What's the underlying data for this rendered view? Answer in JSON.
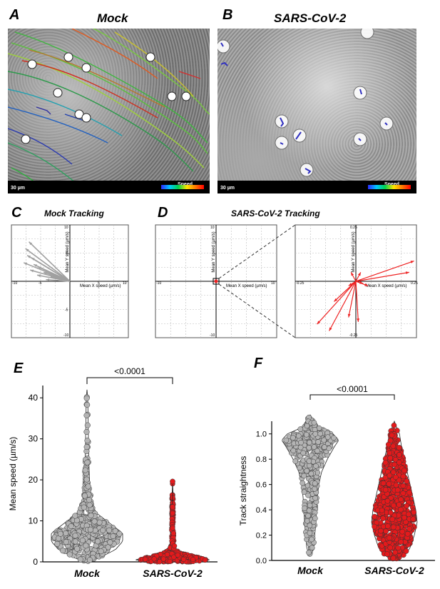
{
  "panels": {
    "a": {
      "letter": "A",
      "title": "Mock",
      "scale_text": "30 µm",
      "legend_text": "Speed"
    },
    "b": {
      "letter": "B",
      "title": "SARS-CoV-2",
      "scale_text": "30 µm",
      "legend_text": "Speed"
    },
    "c": {
      "letter": "C",
      "title": "Mock Tracking"
    },
    "d": {
      "letter": "D",
      "title": "SARS-CoV-2 Tracking"
    },
    "e": {
      "letter": "E"
    },
    "f": {
      "letter": "F"
    }
  },
  "colors": {
    "mock_violin": "#9b9b9b",
    "mock_dot": "#b4b4b4",
    "cov_dot": "#e41a1c",
    "vector_mock": "#a0a0a0",
    "vector_cov": "#ee2222"
  },
  "chart_data": [
    {
      "type": "scatter",
      "name": "C",
      "title": "Mock Tracking",
      "xlabel": "Mean X speed (µm/s)",
      "ylabel": "Mean Y speed (µm/s)",
      "xlim": [
        -10,
        10
      ],
      "ylim": [
        -10,
        10
      ],
      "xticks": [
        "-10",
        "-5",
        "5",
        "10"
      ],
      "yticks": [
        "10",
        "5",
        "-5",
        "-10"
      ],
      "vectors": [
        {
          "x": -7.0,
          "y": 7.0
        },
        {
          "x": -7.6,
          "y": 5.8
        },
        {
          "x": -7.3,
          "y": 4.6
        },
        {
          "x": -6.6,
          "y": 4.2
        },
        {
          "x": -7.9,
          "y": 3.3
        },
        {
          "x": -6.2,
          "y": 3.0
        },
        {
          "x": -5.5,
          "y": 2.6
        },
        {
          "x": -6.8,
          "y": 2.0
        },
        {
          "x": -4.5,
          "y": 1.6
        },
        {
          "x": -5.6,
          "y": 1.1
        },
        {
          "x": -3.3,
          "y": 0.8
        },
        {
          "x": -4.1,
          "y": 0.3
        }
      ]
    },
    {
      "type": "scatter",
      "name": "D",
      "title": "SARS-CoV-2 Tracking",
      "xlabel": "Mean X speed (µm/s)",
      "ylabel": "Mean Y speed (µm/s)",
      "xlim": [
        -10,
        10
      ],
      "ylim": [
        -10,
        10
      ],
      "xticks": [
        "-10",
        "10"
      ],
      "yticks": [
        "10",
        "-10"
      ],
      "inset": {
        "xlim": [
          -0.25,
          0.25
        ],
        "ylim": [
          -0.25,
          0.25
        ],
        "xticks": [
          "-0.25",
          "0.25"
        ],
        "yticks": [
          "0.25",
          "-0.25"
        ],
        "vectors": [
          {
            "x": 0.24,
            "y": 0.09
          },
          {
            "x": 0.22,
            "y": 0.04
          },
          {
            "x": -0.16,
            "y": -0.19
          },
          {
            "x": -0.11,
            "y": -0.22
          },
          {
            "x": -0.03,
            "y": -0.16
          },
          {
            "x": 0.01,
            "y": -0.18
          },
          {
            "x": -0.09,
            "y": -0.09
          },
          {
            "x": -0.02,
            "y": 0.04
          },
          {
            "x": 0.02,
            "y": 0.04
          },
          {
            "x": 0.03,
            "y": -0.01
          },
          {
            "x": 0.05,
            "y": -0.02
          },
          {
            "x": -0.03,
            "y": -0.02
          }
        ]
      }
    },
    {
      "type": "violin",
      "name": "E",
      "ylabel": "Mean speed (µm/s)",
      "ylim": [
        0,
        43
      ],
      "yticks": [
        0,
        10,
        20,
        30,
        40
      ],
      "categories": [
        "Mock",
        "SARS-CoV-2"
      ],
      "significance": "<0.0001",
      "series": [
        {
          "name": "Mock",
          "max": 42,
          "min": 0,
          "width_profile": [
            [
              0,
              0.05
            ],
            [
              1,
              0.35
            ],
            [
              3,
              0.8
            ],
            [
              5,
              1.0
            ],
            [
              7,
              1.0
            ],
            [
              8,
              0.85
            ],
            [
              10,
              0.55
            ],
            [
              12,
              0.25
            ],
            [
              15,
              0.12
            ],
            [
              20,
              0.07
            ],
            [
              25,
              0.05
            ],
            [
              30,
              0.04
            ],
            [
              35,
              0.03
            ],
            [
              40,
              0.02
            ],
            [
              42,
              0
            ]
          ]
        },
        {
          "name": "SARS-CoV-2",
          "max": 19.6,
          "min": 0,
          "width_profile": [
            [
              0,
              0.6
            ],
            [
              0.5,
              1.0
            ],
            [
              1,
              0.8
            ],
            [
              2,
              0.3
            ],
            [
              3,
              0.08
            ],
            [
              5,
              0.04
            ],
            [
              10,
              0.02
            ],
            [
              15,
              0.02
            ],
            [
              19.6,
              0
            ]
          ]
        }
      ]
    },
    {
      "type": "violin",
      "name": "F",
      "ylabel": "Track straightness",
      "ylim": [
        0,
        1.1
      ],
      "yticks": [
        "0.0",
        "0.2",
        "0.4",
        "0.6",
        "0.8",
        "1.0"
      ],
      "categories": [
        "Mock",
        "SARS-CoV-2"
      ],
      "significance": "<0.0001",
      "series": [
        {
          "name": "Mock",
          "max": 1.15,
          "min": 0.05,
          "width_profile": [
            [
              0.05,
              0.05
            ],
            [
              0.1,
              0.12
            ],
            [
              0.2,
              0.16
            ],
            [
              0.3,
              0.2
            ],
            [
              0.4,
              0.22
            ],
            [
              0.5,
              0.25
            ],
            [
              0.6,
              0.3
            ],
            [
              0.7,
              0.4
            ],
            [
              0.8,
              0.6
            ],
            [
              0.9,
              0.85
            ],
            [
              0.95,
              1.0
            ],
            [
              1.0,
              0.8
            ],
            [
              1.05,
              0.3
            ],
            [
              1.1,
              0.15
            ],
            [
              1.15,
              0
            ]
          ]
        },
        {
          "name": "SARS-CoV-2",
          "max": 1.1,
          "min": 0.02,
          "width_profile": [
            [
              0.0,
              0.05
            ],
            [
              0.05,
              0.4
            ],
            [
              0.1,
              0.55
            ],
            [
              0.2,
              0.7
            ],
            [
              0.3,
              0.8
            ],
            [
              0.4,
              0.75
            ],
            [
              0.5,
              0.65
            ],
            [
              0.6,
              0.55
            ],
            [
              0.7,
              0.45
            ],
            [
              0.8,
              0.35
            ],
            [
              0.9,
              0.25
            ],
            [
              1.0,
              0.18
            ],
            [
              1.05,
              0.08
            ],
            [
              1.1,
              0
            ]
          ]
        }
      ]
    }
  ]
}
